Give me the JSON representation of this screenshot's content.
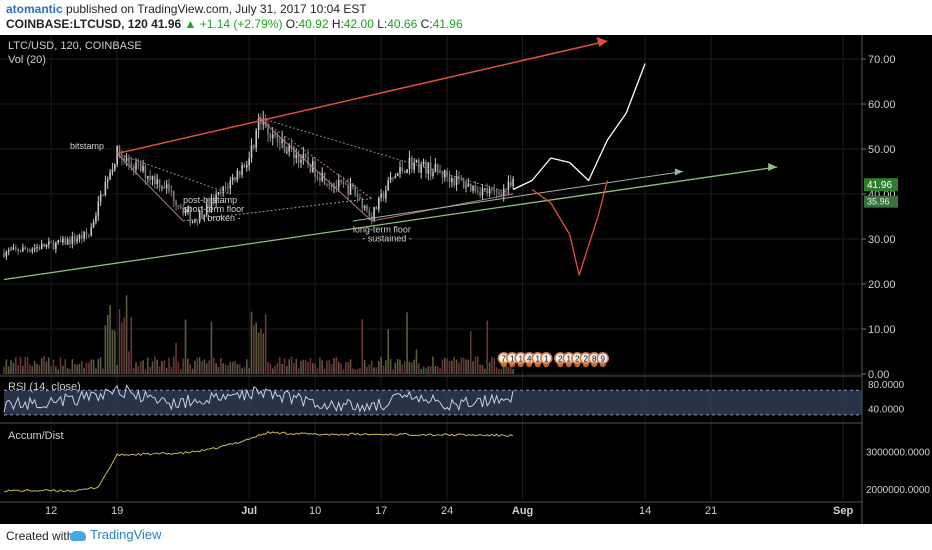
{
  "header": {
    "author": "atomantic",
    "published": "published on TradingView.com, July 31, 2017 10:04 EST",
    "symbol": "COINBASE:LTCUSD, 120",
    "last": "41.96",
    "change": "▲ +1.14 (+2.79%)",
    "o_label": "O:",
    "o_value": "40.92",
    "h_label": "H:",
    "h_value": "42.00",
    "l_label": "L:",
    "l_value": "40.66",
    "c_label": "C:",
    "c_value": "41.96"
  },
  "footer": {
    "created_with": "Created with",
    "brand": "TradingView"
  },
  "colors": {
    "bg": "#000000",
    "grid": "#1c1c1c",
    "text": "#cfcfcf",
    "candle_up": "#c9c9c9",
    "candle_down": "#7d7d7d",
    "red_line": "#e0503c",
    "green_line": "#8fbf7f",
    "white_line": "#ffffff",
    "rsi_band": "#2f3c55",
    "rsi_line": "#d7dcf0",
    "accum_line": "#c8b85a",
    "price_badge": "#2f7d2f"
  },
  "chart_data": [
    {
      "type": "candlestick",
      "title": "LTC/USD, 120, COINBASE",
      "subtitle": "Vol (20)",
      "x_tick_labels": [
        "12",
        "19",
        "Jul",
        "10",
        "17",
        "24",
        "Aug",
        "14",
        "21",
        "Sep"
      ],
      "y_tick_labels": [
        "70.00",
        "60.00",
        "50.00",
        "40.00",
        "30.00",
        "20.00",
        "10.00",
        "0.00"
      ],
      "ylim": [
        0,
        74
      ],
      "last_price_label": "41.96",
      "secondary_price_label": "35.96",
      "annotations": [
        "bitstamp",
        "post-bitstamp",
        "short-term floor",
        "- broken -",
        "long-term floor",
        "- sustained -"
      ],
      "event_markers_a": [
        "7",
        "1",
        "1",
        "4",
        "1",
        "1"
      ],
      "event_markers_b": [
        "2",
        "1",
        "2",
        "2",
        "8",
        "9"
      ],
      "series": [
        {
          "name": "LTC/USD",
          "x": [
            "Jun 7",
            "Jun 10",
            "Jun 13",
            "Jun 16",
            "Jun 18",
            "Jun 19",
            "Jun 21",
            "Jun 24",
            "Jun 27",
            "Jun 30",
            "Jul 3",
            "Jul 4",
            "Jul 6",
            "Jul 9",
            "Jul 12",
            "Jul 14",
            "Jul 16",
            "Jul 18",
            "Jul 20",
            "Jul 23",
            "Jul 26",
            "Jul 29",
            "Jul 31"
          ],
          "y": [
            27,
            28,
            29,
            31,
            44,
            49,
            46,
            42,
            34,
            40,
            48,
            56,
            52,
            47,
            42,
            41,
            35,
            43,
            47,
            45,
            42,
            40,
            41.96
          ]
        }
      ],
      "projection": {
        "upper_path": {
          "x": [
            "Jul 31",
            "Aug 2",
            "Aug 4",
            "Aug 6",
            "Aug 8",
            "Aug 10",
            "Aug 12",
            "Aug 14"
          ],
          "y": [
            41,
            43,
            48,
            47,
            43,
            52,
            58,
            69
          ]
        },
        "lower_path": {
          "x": [
            "Aug 2",
            "Aug 4",
            "Aug 6",
            "Aug 7",
            "Aug 9",
            "Aug 10"
          ],
          "y": [
            41,
            38,
            31,
            22,
            35,
            43
          ]
        }
      }
    },
    {
      "type": "line",
      "title": "RSI (14, close)",
      "y_tick_labels": [
        "80.0000",
        "40.0000"
      ],
      "ylim": [
        20,
        90
      ],
      "band": [
        30,
        70
      ],
      "x": [
        "Jun 7",
        "Jun 12",
        "Jun 17",
        "Jun 19",
        "Jun 24",
        "Jul 1",
        "Jul 4",
        "Jul 10",
        "Jul 15",
        "Jul 20",
        "Jul 25",
        "Jul 31"
      ],
      "values": [
        45,
        52,
        60,
        72,
        48,
        58,
        70,
        50,
        42,
        58,
        45,
        62
      ]
    },
    {
      "type": "line",
      "title": "Accum/Dist",
      "y_tick_labels": [
        "3000000.0000",
        "2000000.0000"
      ],
      "ylim": [
        1700000,
        3700000
      ],
      "x": [
        "Jun 7",
        "Jun 15",
        "Jun 17",
        "Jun 19",
        "Jun 26",
        "Jun 29",
        "Jul 2",
        "Jul 5",
        "Jul 10",
        "Jul 20",
        "Jul 31"
      ],
      "values": [
        1950000,
        1950000,
        2050000,
        2900000,
        2950000,
        3050000,
        3250000,
        3500000,
        3450000,
        3450000,
        3420000
      ]
    }
  ]
}
